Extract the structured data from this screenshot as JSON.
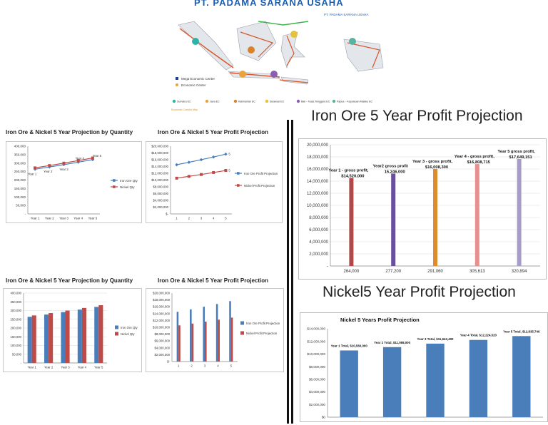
{
  "map": {
    "title": "PT. PADAMA SARANA USAHA",
    "company_tag": "PT. PADAMA SARANA USAHA",
    "legend": [
      "Mega Economic Center",
      "Economic Center"
    ],
    "corridors": [
      {
        "num": "1",
        "label": "Sumatra EC",
        "color": "#2bb5a6"
      },
      {
        "num": "2",
        "label": "Java EC",
        "color": "#e8a33c"
      },
      {
        "num": "3",
        "label": "Kalimantan EC",
        "color": "#d9822b"
      },
      {
        "num": "4",
        "label": "Sulawesi EC",
        "color": "#e4c13a"
      },
      {
        "num": "5",
        "label": "Bali – Nusa Tenggara EC",
        "color": "#8a5fb0"
      },
      {
        "num": "6",
        "label": "Papua – Kepulauan Maluku EC",
        "color": "#59b3a0"
      }
    ],
    "footnote": "Economic Corridor Map"
  },
  "headings": {
    "iron_big": "Iron Ore 5 Year Profit Projection",
    "nickel_big": "Nickel5 Year Profit Projection"
  },
  "chart_data": [
    {
      "id": "qty_line",
      "type": "line",
      "title": "Iron Ore & Nickel 5 Year Projection by Quantity",
      "categories": [
        "Year 1",
        "Year 2",
        "Year 3",
        "Year 4",
        "Year 5"
      ],
      "ylim": [
        0,
        400000
      ],
      "yticks": [
        "-",
        "50,000",
        "100,000",
        "150,000",
        "200,000",
        "250,000",
        "300,000",
        "350,000",
        "400,000"
      ],
      "series": [
        {
          "name": "Iron Ore Qty",
          "color": "#4a7ebb",
          "values": [
            264000,
            277200,
            291060,
            305613,
            320894
          ]
        },
        {
          "name": "Nickel Qty",
          "color": "#be4b48",
          "values": [
            272000,
            285600,
            299880,
            314874,
            330618
          ]
        }
      ],
      "annotations": [
        "Year 1",
        "Year 2",
        "Year 3",
        "Year 4",
        "Year 5"
      ]
    },
    {
      "id": "profit_line",
      "type": "line",
      "title": "Iron Ore & Nickel 5 Year Profit Projection",
      "categories": [
        "1",
        "2",
        "3",
        "4",
        "5"
      ],
      "ylim": [
        0,
        20000000
      ],
      "yticks": [
        "$-",
        "$2,000,000",
        "$4,000,000",
        "$6,000,000",
        "$8,000,000",
        "$10,000,000",
        "$12,000,000",
        "$14,000,000",
        "$16,000,000",
        "$18,000,000",
        "$20,000,000"
      ],
      "series": [
        {
          "name": "Iron Ore Profit Projection",
          "color": "#4a7ebb",
          "values": [
            14520000,
            15246000,
            16008300,
            16808715,
            17649151
          ]
        },
        {
          "name": "Nickel Profit Projection",
          "color": "#be4b48",
          "values": [
            10560000,
            11088000,
            11642400,
            12224520,
            12835746
          ]
        }
      ],
      "end_labels": [
        "5",
        "5"
      ]
    },
    {
      "id": "qty_bar",
      "type": "bar",
      "title": "Iron Ore & Nickel 5 Year Projection by Quantity",
      "categories": [
        "Year 1",
        "Year 2",
        "Year 3",
        "Year 4",
        "Year 5"
      ],
      "ylim": [
        0,
        400000
      ],
      "yticks": [
        "-",
        "50,000",
        "100,000",
        "150,000",
        "200,000",
        "250,000",
        "300,000",
        "350,000",
        "400,000"
      ],
      "series": [
        {
          "name": "Iron Ore Qty",
          "color": "#4a7ebb",
          "values": [
            264000,
            277200,
            291060,
            305613,
            320894
          ]
        },
        {
          "name": "Nickel Qty",
          "color": "#be4b48",
          "values": [
            272000,
            285600,
            299880,
            314874,
            330618
          ]
        }
      ]
    },
    {
      "id": "profit_bar",
      "type": "bar",
      "title": "Iron Ore & Nickel 5 Year Profit Projection",
      "categories": [
        "1",
        "2",
        "3",
        "4",
        "5"
      ],
      "ylim": [
        0,
        20000000
      ],
      "yticks": [
        "$-",
        "$2,000,000",
        "$4,000,000",
        "$6,000,000",
        "$8,000,000",
        "$10,000,000",
        "$12,000,000",
        "$14,000,000",
        "$16,000,000",
        "$18,000,000",
        "$20,000,000"
      ],
      "series": [
        {
          "name": "Iron Ore Profit Projection",
          "color": "#4a7ebb",
          "values": [
            14520000,
            15246000,
            16008300,
            16808715,
            17649151
          ]
        },
        {
          "name": "Nickel Profit Projection",
          "color": "#be4b48",
          "values": [
            10560000,
            11088000,
            11642400,
            12224520,
            12835746
          ]
        }
      ]
    },
    {
      "id": "iron_big",
      "type": "bar",
      "title": "",
      "categories": [
        "264,000",
        "277,200",
        "291,060",
        "305,613",
        "320,894"
      ],
      "ylim": [
        0,
        20000000
      ],
      "yticks": [
        "-",
        "2,000,000",
        "4,000,000",
        "6,000,000",
        "8,000,000",
        "10,000,000",
        "12,000,000",
        "14,000,000",
        "16,000,000",
        "18,000,000",
        "20,000,000"
      ],
      "values": [
        14520000,
        15246000,
        16008300,
        16808715,
        17649151
      ],
      "colors": [
        "#b04a4a",
        "#6a4fa0",
        "#e08b2e",
        "#e8908f",
        "#a79bc9"
      ],
      "labels": [
        [
          "Year 1 - gross profit,",
          "$14,520,000"
        ],
        [
          "Year2 gross profit",
          "15,246,000"
        ],
        [
          "Year 3 - gross profit,",
          "$16,008,300"
        ],
        [
          "Year 4 - gross profit,",
          "$16,808,715"
        ],
        [
          "Year 5  gross profit,",
          "$17,649,151"
        ]
      ]
    },
    {
      "id": "nickel_big",
      "type": "bar",
      "title": "Nickel 5 Years Profit Projection",
      "categories": [
        "",
        "",
        "",
        "",
        ""
      ],
      "ylim": [
        0,
        14000000
      ],
      "yticks": [
        "$0",
        "$2,000,000",
        "$4,000,000",
        "$6,000,000",
        "$8,000,000",
        "$10,000,000",
        "$12,000,000",
        "$14,000,000"
      ],
      "values": [
        10560000,
        11088000,
        11642400,
        12224520,
        12835746
      ],
      "color": "#4a7ebb",
      "labels": [
        "Year 1 Total, $10,560,000",
        "Year 2 Total, $11,088,000",
        "Year 3 Total, $11,642,400",
        "Year 4 Total, $12,224,520",
        "Year 5 Total, $12,835,746"
      ]
    }
  ]
}
